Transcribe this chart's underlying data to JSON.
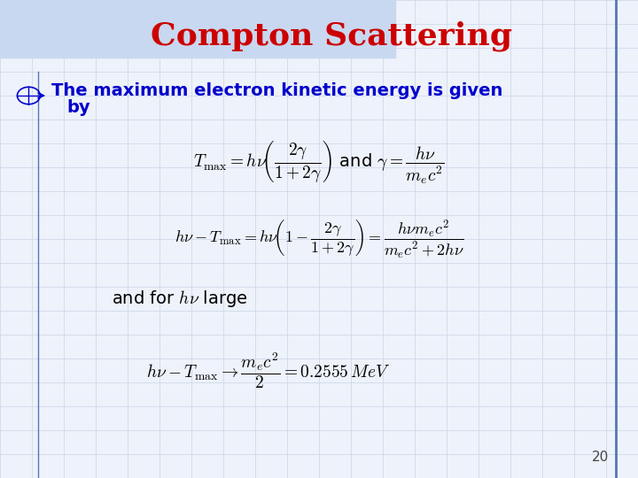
{
  "title": "Compton Scattering",
  "title_color": "#CC0000",
  "title_fontsize": 26,
  "bullet_color": "#0000CC",
  "bullet_fontsize": 14,
  "eq_color": "#000000",
  "eq_fontsize": 13,
  "page_number": "20",
  "bg_color": "#eef2fa",
  "grid_color": "#c8d4e8",
  "border_color": "#5577bb",
  "title_top_bg": "#c8d8f0"
}
